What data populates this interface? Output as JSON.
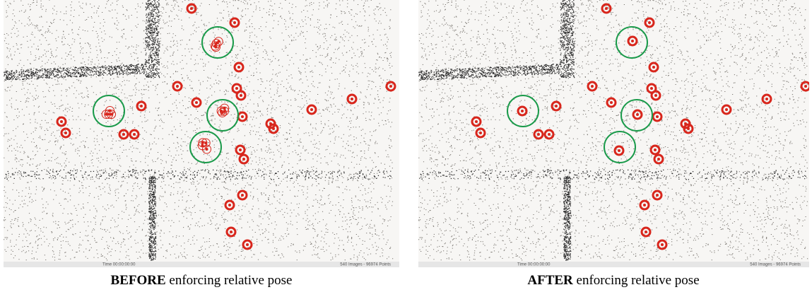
{
  "panels": [
    {
      "status_left": "Time 00:00:00:00",
      "status_right": "540 Images - 96974 Points",
      "caption_bold": "BEFORE",
      "caption_rest": " enforcing relative pose"
    },
    {
      "status_left": "Time 00:00:00:00",
      "status_right": "540 Images - 96974 Points",
      "caption_bold": "AFTER",
      "caption_rest": " enforcing relative pose"
    }
  ]
}
